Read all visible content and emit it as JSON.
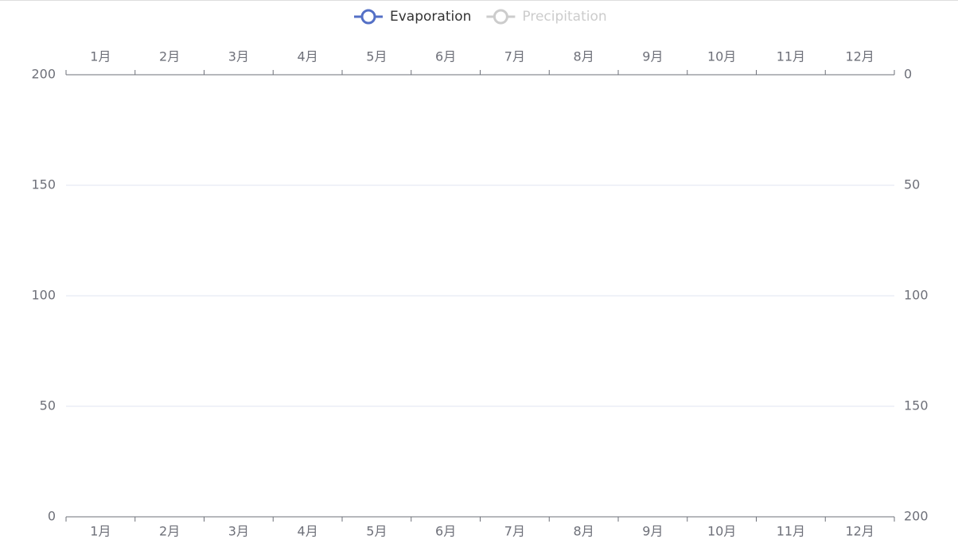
{
  "chart_data": {
    "type": "line",
    "categories": [
      "1月",
      "2月",
      "3月",
      "4月",
      "5月",
      "6月",
      "7月",
      "8月",
      "9月",
      "10月",
      "11月",
      "12月"
    ],
    "series": [
      {
        "name": "Evaporation",
        "color": "#5470c6",
        "selected": true
      },
      {
        "name": "Precipitation",
        "color": "#5470c6",
        "selected": false
      }
    ],
    "ylim": [
      0,
      200
    ],
    "yticks": [
      0,
      50,
      100,
      150,
      200
    ],
    "y2lim": [
      0,
      200
    ],
    "y2ticks": [
      0,
      50,
      100,
      150,
      200
    ],
    "y2inverse": true,
    "grid": true,
    "legend": "top"
  }
}
